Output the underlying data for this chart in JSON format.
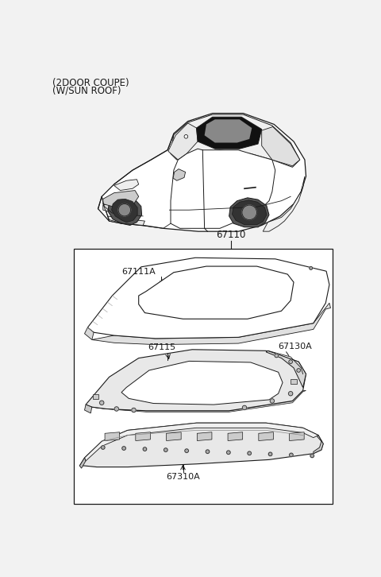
{
  "bg_color": "#f2f2f2",
  "white": "#ffffff",
  "line_color": "#1a1a1a",
  "gray_light": "#e8e8e8",
  "gray_mid": "#cccccc",
  "title_line1": "(2DOOR COUPE)",
  "title_line2": "(W/SUN ROOF)",
  "label_67110": "67110",
  "label_67111A": "67111A",
  "label_67115": "67115",
  "label_67130A": "67130A",
  "label_67310A": "67310A",
  "font_size_title": 8.5,
  "font_size_label": 7.5
}
